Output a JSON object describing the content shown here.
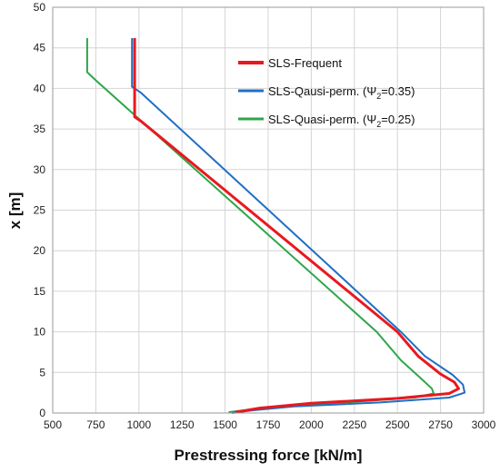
{
  "chart_data": {
    "type": "line",
    "xlabel": "Prestressing force [kN/m]",
    "ylabel": "x [m]",
    "xlim": [
      500,
      3000
    ],
    "ylim": [
      0,
      50
    ],
    "xticks": [
      500,
      750,
      1000,
      1250,
      1500,
      1750,
      2000,
      2250,
      2500,
      2750,
      3000
    ],
    "yticks": [
      0,
      5,
      10,
      15,
      20,
      25,
      30,
      35,
      40,
      45,
      50
    ],
    "grid": true,
    "legend_position": "top-right",
    "series": [
      {
        "name": "SLS-Frequent",
        "label_main": "SLS-Frequent",
        "label_sub": "",
        "label_end": "",
        "color": "#e8191f",
        "width": 3,
        "points": [
          [
            975,
            46.2
          ],
          [
            975,
            36.5
          ],
          [
            1010,
            36.0
          ],
          [
            2500,
            10.0
          ],
          [
            2620,
            7.0
          ],
          [
            2750,
            4.8
          ],
          [
            2830,
            3.8
          ],
          [
            2855,
            3.0
          ],
          [
            2800,
            2.4
          ],
          [
            2500,
            1.8
          ],
          [
            2000,
            1.2
          ],
          [
            1700,
            0.6
          ],
          [
            1560,
            0.1
          ]
        ]
      },
      {
        "name": "SLS-Qausi-perm. (Ψ2=0.35)",
        "label_main": "SLS-Qausi-perm. (Ψ",
        "label_sub": "2",
        "label_end": "=0.35)",
        "color": "#1f6fc5",
        "width": 2,
        "points": [
          [
            960,
            46.2
          ],
          [
            960,
            40.2
          ],
          [
            1010,
            39.5
          ],
          [
            2520,
            10.0
          ],
          [
            2660,
            7.0
          ],
          [
            2820,
            4.7
          ],
          [
            2880,
            3.5
          ],
          [
            2890,
            2.5
          ],
          [
            2800,
            1.9
          ],
          [
            2400,
            1.3
          ],
          [
            1900,
            0.8
          ],
          [
            1650,
            0.3
          ],
          [
            1540,
            0.0
          ]
        ]
      },
      {
        "name": "SLS-Quasi-perm. (Ψ2=0.25)",
        "label_main": "SLS-Quasi-perm. (Ψ",
        "label_sub": "2",
        "label_end": "=0.25)",
        "color": "#2ea64a",
        "width": 2,
        "points": [
          [
            700,
            46.2
          ],
          [
            700,
            42.0
          ],
          [
            750,
            41.0
          ],
          [
            2380,
            10.0
          ],
          [
            2520,
            6.5
          ],
          [
            2650,
            4.0
          ],
          [
            2700,
            3.0
          ],
          [
            2710,
            2.4
          ],
          [
            2600,
            1.9
          ],
          [
            2200,
            1.3
          ],
          [
            1800,
            0.7
          ],
          [
            1600,
            0.3
          ],
          [
            1520,
            0.1
          ]
        ]
      }
    ]
  }
}
